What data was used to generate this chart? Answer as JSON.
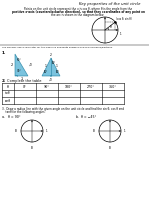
{
  "title_top": "Key properties of the unit circle",
  "intro_text1": "Points on the unit circle represent the x is cos θ, where θ is the angle from the",
  "intro_text2": "positive x-axis (counterclockwise direction), so that they coordinates of any point on",
  "intro_text3": "the arc is shown in the diagram below.",
  "label_cos_sin": "(cos θ, sin θ)",
  "section_note": "You DO NOT use a calculator for this exercise and write answers in whole numbers/fractions.",
  "table_headers": [
    "θ",
    "0°",
    "90°",
    "180°",
    "270°",
    "360°"
  ],
  "row1_label": "sinθ",
  "row2_label": "cosθ",
  "part3_text1": "3.  Draw a radius line with the given angle on the unit circle and find the sin θ, cos θ and",
  "part3_text2": "tanθ for the following angles:",
  "angle_a": "a.   θ = 90°",
  "angle_b": "b.  θ = −45°",
  "bg_color": "#ffffff",
  "text_color": "#000000",
  "circle_color": "#000000",
  "triangle_color_blue": "#5ab4d6",
  "arrow_color": "#000000",
  "note_color": "#555555"
}
